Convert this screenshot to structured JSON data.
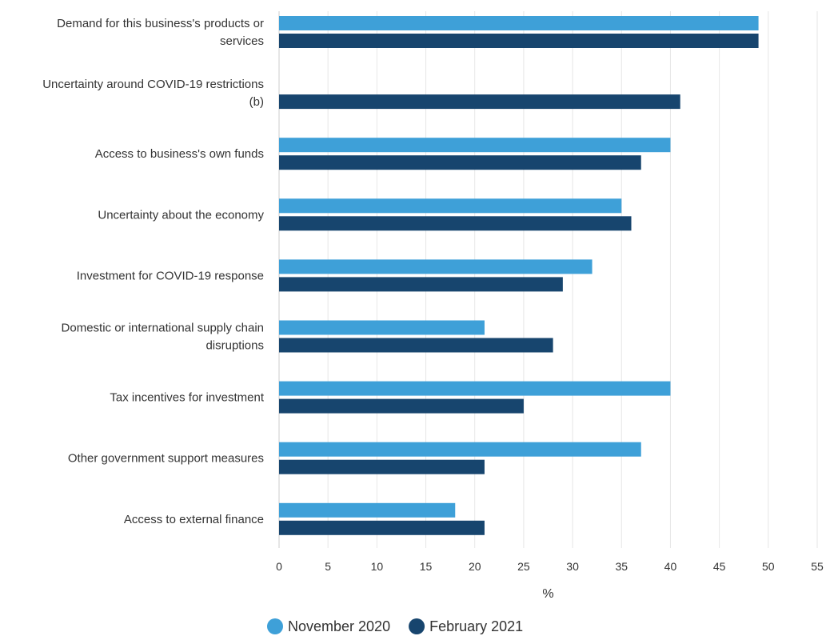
{
  "chart_data": {
    "type": "bar",
    "orientation": "horizontal",
    "categories": [
      "Demand for this business's products or services",
      "Uncertainty around COVID-19 restrictions (b)",
      "Access to business's own funds",
      "Uncertainty about the economy",
      "Investment for COVID-19 response",
      "Domestic or international supply chain disruptions",
      "Tax incentives for investment",
      "Other government support measures",
      "Access to external finance"
    ],
    "category_lines": [
      [
        "Demand for this business's products or",
        "services"
      ],
      [
        "Uncertainty around COVID-19 restrictions",
        "(b)"
      ],
      [
        "Access to business's own funds"
      ],
      [
        "Uncertainty about the economy"
      ],
      [
        "Investment for COVID-19 response"
      ],
      [
        "Domestic or international supply chain",
        "disruptions"
      ],
      [
        "Tax incentives for investment"
      ],
      [
        "Other government support measures"
      ],
      [
        "Access to external finance"
      ]
    ],
    "series": [
      {
        "name": "November 2020",
        "color": "#3ea0d8",
        "values": [
          49,
          null,
          40,
          35,
          32,
          21,
          40,
          37,
          18
        ]
      },
      {
        "name": "February 2021",
        "color": "#17456e",
        "values": [
          49,
          41,
          37,
          36,
          29,
          28,
          25,
          21,
          21
        ]
      }
    ],
    "xlabel": "%",
    "xlim": [
      0,
      55
    ],
    "xticks": [
      0,
      5,
      10,
      15,
      20,
      25,
      30,
      35,
      40,
      45,
      50,
      55
    ],
    "grid": true,
    "legend": {
      "position": "bottom"
    }
  }
}
